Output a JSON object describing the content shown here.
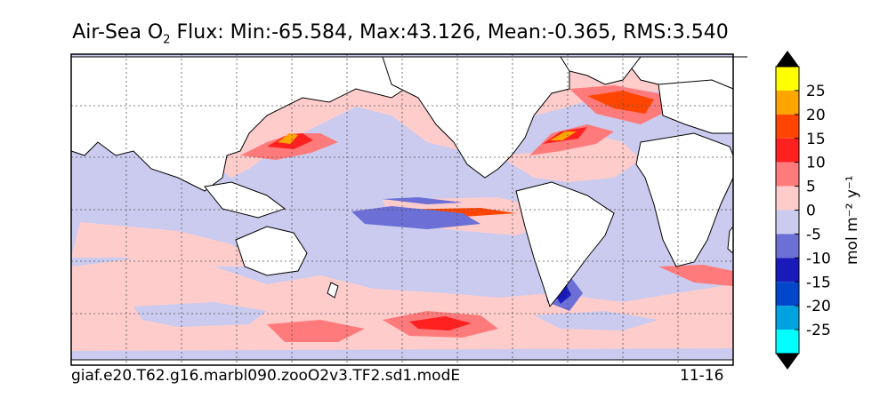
{
  "title": {
    "prefix": "Air-Sea O",
    "subscript": "2",
    "suffix": " Flux: Min:-65.584, Max:43.126, Mean:-0.365, RMS:3.540"
  },
  "footer": {
    "case_name": "giaf.e20.T62.g16.marbl090.zooO2v3.TF2.sd1.modE",
    "date_range": "11-16"
  },
  "colorbar": {
    "unit_label": "mol m⁻² y⁻¹",
    "levels": [
      "25",
      "20",
      "15",
      "10",
      "5",
      "0",
      "-5",
      "-10",
      "-15",
      "-20",
      "-25"
    ],
    "colors": [
      "#ffff00",
      "#ffa500",
      "#ff4500",
      "#ff2020",
      "#ff7b7b",
      "#ffcccc",
      "#cacbee",
      "#6b6fd6",
      "#1a1aba",
      "#0047cc",
      "#00a3e0",
      "#00ffff"
    ],
    "over_color": "#000000",
    "under_color": "#000000"
  },
  "map": {
    "background_color": "#cacbee",
    "land_color": "#ffffff",
    "grid": "dashed"
  }
}
